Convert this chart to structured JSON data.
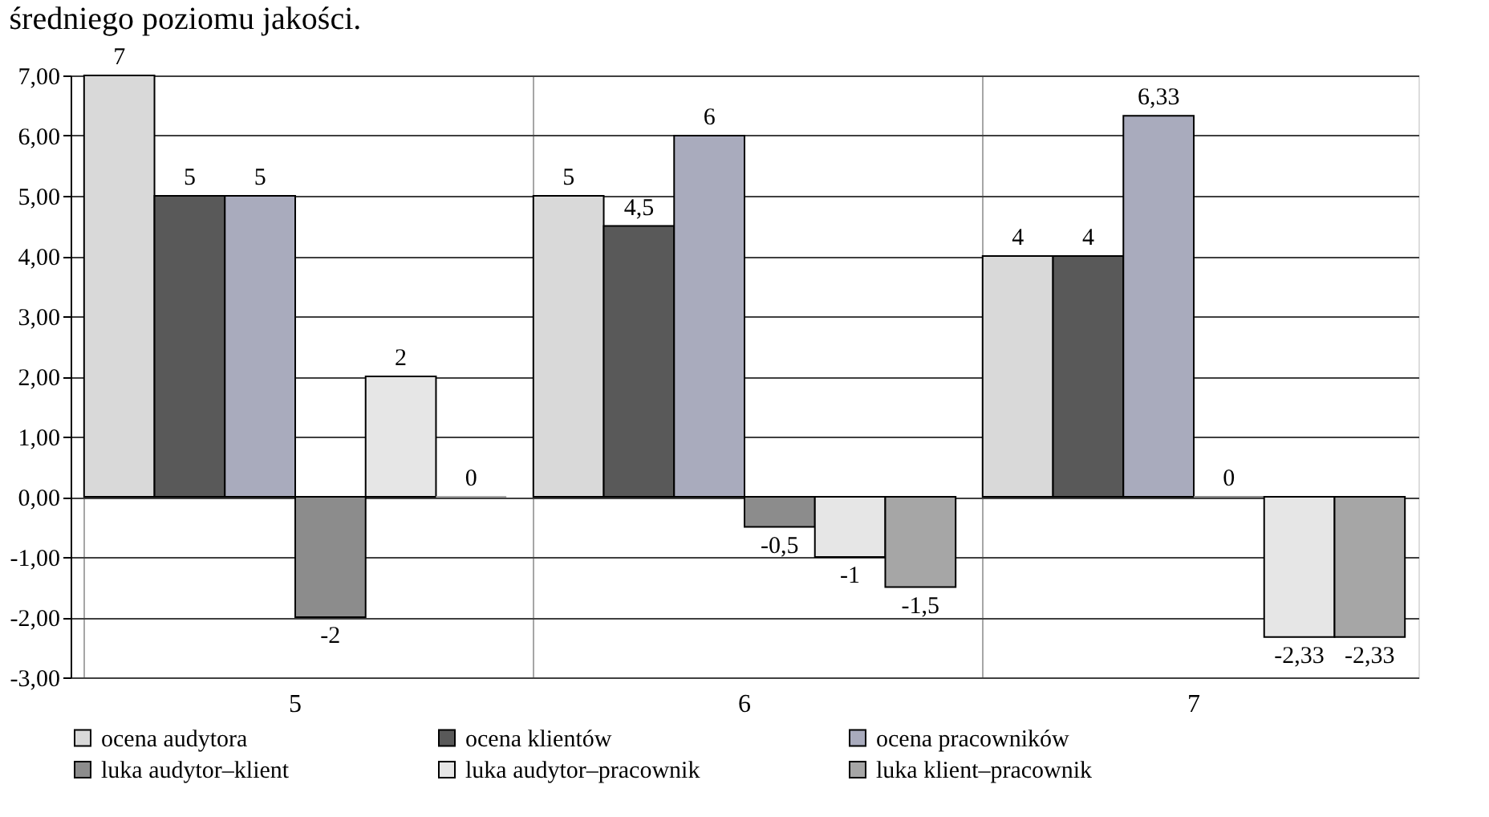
{
  "chart_data": {
    "type": "bar",
    "title": "średniego poziomu jakości.",
    "categories": [
      "5",
      "6",
      "7"
    ],
    "series": [
      {
        "name": "ocena audytora",
        "color": "#d9d9d9",
        "values": [
          7,
          5,
          4
        ],
        "value_labels": [
          "7",
          "5",
          "4"
        ]
      },
      {
        "name": "ocena klientów",
        "color": "#595959",
        "values": [
          5,
          4.5,
          4
        ],
        "value_labels": [
          "5",
          "4,5",
          "4"
        ]
      },
      {
        "name": "ocena pracowników",
        "color": "#a9abbd",
        "values": [
          5,
          6,
          6.33
        ],
        "value_labels": [
          "5",
          "6",
          "6,33"
        ]
      },
      {
        "name": "luka audytor–klient",
        "color": "#8c8c8c",
        "values": [
          -2,
          -0.5,
          0
        ],
        "value_labels": [
          "-2",
          "-0,5",
          "0"
        ]
      },
      {
        "name": "luka audytor–pracownik",
        "color": "#e6e6e6",
        "values": [
          2,
          -1,
          -2.33
        ],
        "value_labels": [
          "2",
          "-1",
          "-2,33"
        ]
      },
      {
        "name": "luka klient–pracownik",
        "color": "#a6a6a6",
        "values": [
          0,
          -1.5,
          -2.33
        ],
        "value_labels": [
          "0",
          "-1,5",
          "-2,33"
        ]
      }
    ],
    "ylim": [
      -3,
      7
    ],
    "yticks": [
      {
        "value": -3,
        "label": "-3,00"
      },
      {
        "value": -2,
        "label": "-2,00"
      },
      {
        "value": -1,
        "label": "-1,00"
      },
      {
        "value": 0,
        "label": "0,00"
      },
      {
        "value": 1,
        "label": "1,00"
      },
      {
        "value": 2,
        "label": "2,00"
      },
      {
        "value": 3,
        "label": "3,00"
      },
      {
        "value": 4,
        "label": "4,00"
      },
      {
        "value": 5,
        "label": "5,00"
      },
      {
        "value": 6,
        "label": "6,00"
      },
      {
        "value": 7,
        "label": "7,00"
      }
    ],
    "grid": true,
    "legend": "bottom"
  }
}
